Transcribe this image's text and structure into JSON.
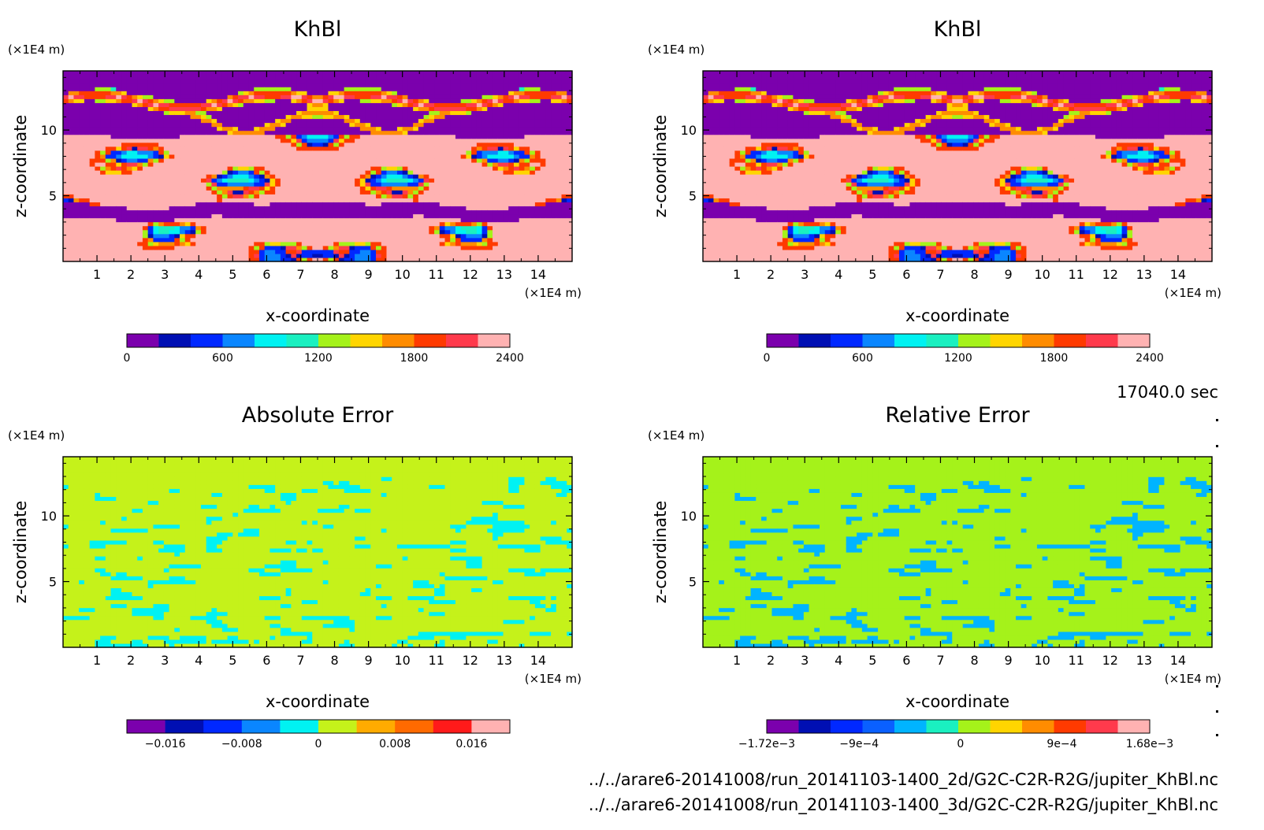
{
  "time_label": "17040.0 sec",
  "file_paths": [
    "../../arare6-20141008/run_20141103-1400_2d/G2C-C2R-R2G/jupiter_KhBl.nc",
    "../../arare6-20141008/run_20141103-1400_3d/G2C-C2R-R2G/jupiter_KhBl.nc"
  ],
  "chart_data": [
    {
      "type": "heatmap",
      "title": "KhBl",
      "xlabel": "x-coordinate",
      "ylabel": "z-coordinate",
      "x_unit": "(×1E4 m)",
      "z_unit": "(×1E4 m)",
      "xlim": [
        0,
        15
      ],
      "zlim": [
        0,
        14.5
      ],
      "x_ticks": [
        "1",
        "2",
        "3",
        "4",
        "5",
        "6",
        "7",
        "8",
        "9",
        "10",
        "11",
        "12",
        "13",
        "14"
      ],
      "z_ticks": [
        "5",
        "10"
      ],
      "colorbar": {
        "levels": 12,
        "range": [
          0,
          2400
        ],
        "tick_labels": [
          "0",
          "600",
          "1200",
          "1800",
          "2400"
        ],
        "colors": [
          "#7b00ad",
          "#000fb3",
          "#0028ff",
          "#0a86ff",
          "#00f2f2",
          "#1af0c0",
          "#a5f21a",
          "#ffd500",
          "#ff8c00",
          "#ff3a00",
          "#ff3a4c",
          "#ffb2b2"
        ]
      }
    },
    {
      "type": "heatmap",
      "title": "KhBl",
      "xlabel": "x-coordinate",
      "ylabel": "z-coordinate",
      "x_unit": "(×1E4 m)",
      "z_unit": "(×1E4 m)",
      "xlim": [
        0,
        15
      ],
      "zlim": [
        0,
        14.5
      ],
      "x_ticks": [
        "1",
        "2",
        "3",
        "4",
        "5",
        "6",
        "7",
        "8",
        "9",
        "10",
        "11",
        "12",
        "13",
        "14"
      ],
      "z_ticks": [
        "5",
        "10"
      ],
      "colorbar": {
        "levels": 12,
        "range": [
          0,
          2400
        ],
        "tick_labels": [
          "0",
          "600",
          "1200",
          "1800",
          "2400"
        ],
        "colors": [
          "#7b00ad",
          "#000fb3",
          "#0028ff",
          "#0a86ff",
          "#00f2f2",
          "#1af0c0",
          "#a5f21a",
          "#ffd500",
          "#ff8c00",
          "#ff3a00",
          "#ff3a4c",
          "#ffb2b2"
        ]
      }
    },
    {
      "type": "heatmap",
      "title": "Absolute Error",
      "xlabel": "x-coordinate",
      "ylabel": "z-coordinate",
      "x_unit": "(×1E4 m)",
      "z_unit": "(×1E4 m)",
      "xlim": [
        0,
        15
      ],
      "zlim": [
        0,
        14.5
      ],
      "x_ticks": [
        "1",
        "2",
        "3",
        "4",
        "5",
        "6",
        "7",
        "8",
        "9",
        "10",
        "11",
        "12",
        "13",
        "14"
      ],
      "z_ticks": [
        "5",
        "10"
      ],
      "colorbar": {
        "levels": 10,
        "range": [
          -0.02,
          0.02
        ],
        "tick_labels": [
          "−0.016",
          "−0.008",
          "0",
          "0.008",
          "0.016"
        ],
        "colors": [
          "#7b00ad",
          "#000fb3",
          "#0028ff",
          "#0a86ff",
          "#00f2f2",
          "#c5f21a",
          "#ffab00",
          "#ff6a00",
          "#ff1a1a",
          "#ffb2b2"
        ]
      }
    },
    {
      "type": "heatmap",
      "title": "Relative Error",
      "xlabel": "x-coordinate",
      "ylabel": "z-coordinate",
      "x_unit": "(×1E4 m)",
      "z_unit": "(×1E4 m)",
      "xlim": [
        0,
        15
      ],
      "zlim": [
        0,
        14.5
      ],
      "x_ticks": [
        "1",
        "2",
        "3",
        "4",
        "5",
        "6",
        "7",
        "8",
        "9",
        "10",
        "11",
        "12",
        "13",
        "14"
      ],
      "z_ticks": [
        "5",
        "10"
      ],
      "colorbar": {
        "levels": 12,
        "range": [
          -0.00172,
          0.00168
        ],
        "tick_labels": [
          "−1.72e−3",
          "−9e−4",
          "0",
          "9e−4",
          "1.68e−3"
        ],
        "colors": [
          "#7b00ad",
          "#000fb3",
          "#0028ff",
          "#0a60ff",
          "#00b4ff",
          "#1af0c0",
          "#a5f21a",
          "#ffd500",
          "#ff8c00",
          "#ff3a00",
          "#ff3a4c",
          "#ffb2b2"
        ]
      }
    }
  ]
}
